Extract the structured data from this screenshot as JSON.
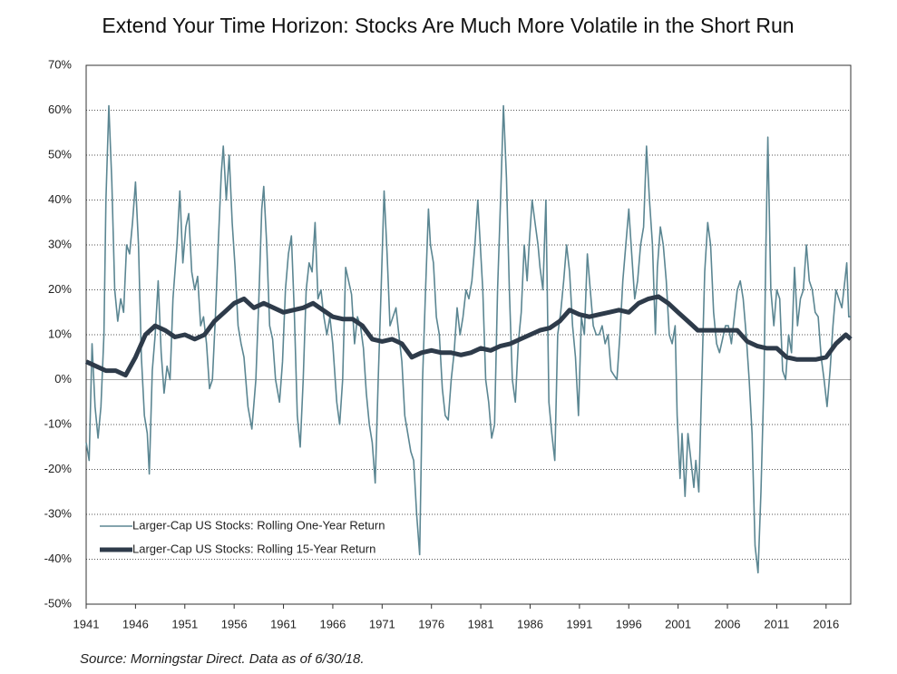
{
  "chart_data": {
    "type": "line",
    "title": "Extend Your Time Horizon: Stocks Are Much More Volatile in the Short Run",
    "source": "Source: Morningstar Direct. Data as of 6/30/18.",
    "xlim": [
      1941,
      2018.5
    ],
    "xticks": [
      1941,
      1946,
      1951,
      1956,
      1961,
      1966,
      1971,
      1976,
      1981,
      1986,
      1991,
      1996,
      2001,
      2006,
      2011,
      2016
    ],
    "ylim": [
      -50,
      70
    ],
    "yticks": [
      {
        "value": -50,
        "label": "-50%"
      },
      {
        "value": -40,
        "label": "-40%"
      },
      {
        "value": -30,
        "label": "-30%"
      },
      {
        "value": -20,
        "label": "-20%"
      },
      {
        "value": -10,
        "label": "-10%"
      },
      {
        "value": 0,
        "label": "0%"
      },
      {
        "value": 10,
        "label": "10%"
      },
      {
        "value": 20,
        "label": "20%"
      },
      {
        "value": 30,
        "label": "30%"
      },
      {
        "value": 40,
        "label": "40%"
      },
      {
        "value": 50,
        "label": "50%"
      },
      {
        "value": 60,
        "label": "60%"
      },
      {
        "value": 70,
        "label": "70%"
      }
    ],
    "grid": true,
    "legend": "lower left",
    "series": [
      {
        "name": "Larger-Cap US Stocks: Rolling One-Year Return",
        "color": "#5b8692",
        "width": 1.6,
        "x": [
          1941.0,
          1941.3,
          1941.6,
          1941.9,
          1942.2,
          1942.5,
          1942.8,
          1943.0,
          1943.3,
          1943.6,
          1943.9,
          1944.2,
          1944.5,
          1944.8,
          1945.1,
          1945.4,
          1945.7,
          1946.0,
          1946.3,
          1946.6,
          1946.9,
          1947.2,
          1947.4,
          1947.7,
          1948.0,
          1948.3,
          1948.6,
          1948.9,
          1949.2,
          1949.5,
          1949.8,
          1950.2,
          1950.5,
          1950.8,
          1951.1,
          1951.4,
          1951.7,
          1952.0,
          1952.3,
          1952.6,
          1952.9,
          1953.2,
          1953.5,
          1953.8,
          1954.1,
          1954.4,
          1954.7,
          1954.9,
          1955.2,
          1955.5,
          1955.8,
          1956.1,
          1956.4,
          1956.7,
          1957.0,
          1957.4,
          1957.8,
          1958.2,
          1958.5,
          1958.8,
          1959.0,
          1959.3,
          1959.6,
          1959.9,
          1960.2,
          1960.6,
          1960.9,
          1961.2,
          1961.5,
          1961.8,
          1962.1,
          1962.4,
          1962.7,
          1963.0,
          1963.3,
          1963.6,
          1963.9,
          1964.2,
          1964.5,
          1964.8,
          1965.1,
          1965.4,
          1965.7,
          1966.0,
          1966.4,
          1966.7,
          1967.0,
          1967.3,
          1967.6,
          1967.9,
          1968.2,
          1968.5,
          1968.8,
          1969.1,
          1969.4,
          1969.7,
          1970.0,
          1970.3,
          1970.6,
          1970.9,
          1971.2,
          1971.5,
          1971.8,
          1972.1,
          1972.4,
          1972.7,
          1973.0,
          1973.3,
          1973.6,
          1973.9,
          1974.2,
          1974.5,
          1974.8,
          1975.1,
          1975.4,
          1975.7,
          1975.9,
          1976.2,
          1976.5,
          1976.8,
          1977.1,
          1977.4,
          1977.7,
          1978.0,
          1978.3,
          1978.6,
          1978.9,
          1979.2,
          1979.5,
          1979.8,
          1980.1,
          1980.4,
          1980.7,
          1980.9,
          1981.2,
          1981.5,
          1981.8,
          1982.1,
          1982.4,
          1982.7,
          1983.0,
          1983.3,
          1983.6,
          1983.9,
          1984.2,
          1984.5,
          1984.8,
          1985.1,
          1985.4,
          1985.7,
          1985.9,
          1986.2,
          1986.5,
          1986.8,
          1987.0,
          1987.3,
          1987.6,
          1987.9,
          1988.2,
          1988.5,
          1988.8,
          1989.1,
          1989.4,
          1989.7,
          1990.0,
          1990.3,
          1990.6,
          1990.9,
          1991.2,
          1991.5,
          1991.8,
          1992.1,
          1992.4,
          1992.7,
          1993.0,
          1993.3,
          1993.6,
          1993.9,
          1994.2,
          1994.5,
          1994.8,
          1995.1,
          1995.4,
          1995.7,
          1996.0,
          1996.3,
          1996.6,
          1996.9,
          1997.2,
          1997.5,
          1997.8,
          1998.1,
          1998.4,
          1998.7,
          1998.9,
          1999.2,
          1999.5,
          1999.8,
          2000.1,
          2000.4,
          2000.7,
          2000.9,
          2001.2,
          2001.4,
          2001.7,
          2002.0,
          2002.3,
          2002.6,
          2002.8,
          2003.1,
          2003.4,
          2003.7,
          2004.0,
          2004.3,
          2004.6,
          2004.9,
          2005.2,
          2005.5,
          2005.8,
          2006.1,
          2006.4,
          2006.7,
          2007.0,
          2007.3,
          2007.6,
          2007.9,
          2008.2,
          2008.5,
          2008.8,
          2009.1,
          2009.4,
          2009.7,
          2009.9,
          2010.1,
          2010.4,
          2010.7,
          2011.0,
          2011.3,
          2011.6,
          2011.9,
          2012.2,
          2012.5,
          2012.8,
          2013.1,
          2013.4,
          2013.7,
          2014.0,
          2014.3,
          2014.6,
          2014.9,
          2015.2,
          2015.5,
          2015.8,
          2016.1,
          2016.4,
          2016.7,
          2017.0,
          2017.3,
          2017.6,
          2017.9,
          2018.1,
          2018.3,
          2018.5
        ],
        "values": [
          -14,
          -18,
          8,
          -6,
          -13,
          -6,
          10,
          40,
          61,
          44,
          20,
          13,
          18,
          15,
          30,
          28,
          35,
          44,
          30,
          5,
          -8,
          -12,
          -21,
          2,
          10,
          22,
          6,
          -3,
          3,
          0,
          18,
          30,
          42,
          26,
          34,
          37,
          24,
          20,
          23,
          12,
          14,
          8,
          -2,
          0,
          14,
          31,
          46,
          52,
          40,
          50,
          35,
          25,
          12,
          8,
          5,
          -6,
          -11,
          0,
          18,
          38,
          43,
          30,
          12,
          9,
          0,
          -5,
          4,
          20,
          28,
          32,
          15,
          -8,
          -15,
          0,
          20,
          26,
          24,
          35,
          18,
          20,
          14,
          10,
          14,
          8,
          -5,
          -10,
          0,
          25,
          22,
          19,
          8,
          14,
          12,
          7,
          -3,
          -10,
          -14,
          -23,
          0,
          20,
          42,
          28,
          12,
          14,
          16,
          10,
          4,
          -8,
          -12,
          -16,
          -18,
          -30,
          -39,
          0,
          20,
          38,
          30,
          26,
          14,
          10,
          -2,
          -8,
          -9,
          0,
          6,
          16,
          10,
          14,
          20,
          18,
          22,
          30,
          40,
          32,
          20,
          0,
          -5,
          -13,
          -10,
          20,
          40,
          61,
          45,
          20,
          0,
          -5,
          8,
          15,
          30,
          22,
          30,
          40,
          35,
          30,
          25,
          20,
          40,
          -5,
          -12,
          -18,
          10,
          15,
          22,
          30,
          24,
          12,
          5,
          -8,
          14,
          10,
          28,
          20,
          12,
          10,
          10,
          12,
          8,
          10,
          2,
          1,
          0,
          10,
          22,
          30,
          38,
          28,
          18,
          22,
          30,
          34,
          52,
          40,
          30,
          10,
          25,
          34,
          30,
          22,
          10,
          8,
          12,
          -8,
          -22,
          -12,
          -26,
          -12,
          -18,
          -24,
          -18,
          -25,
          0,
          24,
          35,
          30,
          15,
          8,
          6,
          9,
          12,
          12,
          8,
          14,
          20,
          22,
          18,
          10,
          0,
          -12,
          -37,
          -43,
          -25,
          0,
          30,
          54,
          20,
          12,
          20,
          18,
          2,
          0,
          10,
          6,
          25,
          12,
          18,
          20,
          30,
          22,
          20,
          15,
          14,
          5,
          0,
          -6,
          2,
          12,
          20,
          18,
          16,
          22,
          26,
          14,
          14
        ]
      },
      {
        "name": "Larger-Cap US Stocks: Rolling 15-Year Return",
        "color": "#2e3b4a",
        "width": 5,
        "x": [
          1941,
          1942,
          1943,
          1944,
          1945,
          1946,
          1947,
          1948,
          1949,
          1950,
          1951,
          1952,
          1953,
          1954,
          1955,
          1956,
          1957,
          1958,
          1959,
          1960,
          1961,
          1962,
          1963,
          1964,
          1965,
          1966,
          1967,
          1968,
          1969,
          1970,
          1971,
          1972,
          1973,
          1974,
          1975,
          1976,
          1977,
          1978,
          1979,
          1980,
          1981,
          1982,
          1983,
          1984,
          1985,
          1986,
          1987,
          1988,
          1989,
          1990,
          1991,
          1992,
          1993,
          1994,
          1995,
          1996,
          1997,
          1998,
          1999,
          2000,
          2001,
          2002,
          2003,
          2004,
          2005,
          2006,
          2007,
          2008,
          2009,
          2010,
          2011,
          2012,
          2013,
          2014,
          2015,
          2016,
          2017,
          2018,
          2018.5
        ],
        "values": [
          4,
          3,
          2,
          2,
          1,
          5,
          10,
          12,
          11,
          9.5,
          10,
          9,
          10,
          13,
          15,
          17,
          18,
          16,
          17,
          16,
          15,
          15.5,
          16,
          17,
          15.5,
          14,
          13.5,
          13.5,
          12,
          9,
          8.5,
          9,
          8,
          5,
          6,
          6.5,
          6,
          6,
          5.5,
          6,
          7,
          6.5,
          7.5,
          8,
          9,
          10,
          11,
          11.5,
          13,
          15.5,
          14.5,
          14,
          14.5,
          15,
          15.5,
          15,
          17,
          18,
          18.5,
          17,
          15,
          13,
          11,
          11,
          11,
          11,
          11,
          8.5,
          7.5,
          7,
          7,
          5,
          4.5,
          4.5,
          4.5,
          5,
          8,
          10,
          9
        ]
      }
    ]
  }
}
